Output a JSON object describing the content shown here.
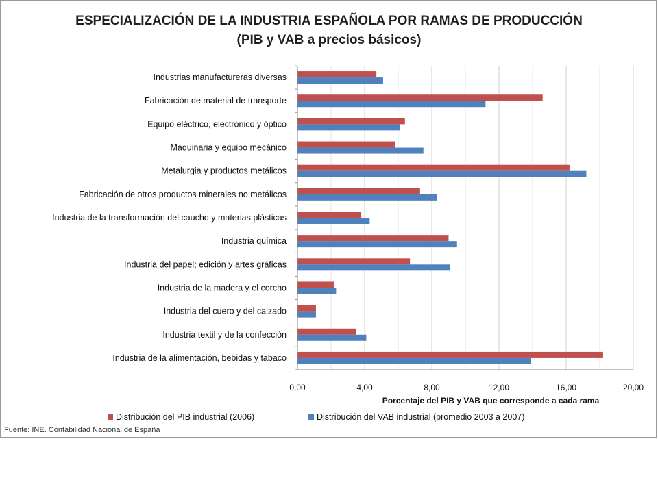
{
  "chart_data": {
    "type": "bar",
    "orientation": "horizontal",
    "title": "ESPECIALIZACIÓN DE LA INDUSTRIA ESPAÑOLA POR RAMAS DE PRODUCCIÓN",
    "subtitle": "(PIB y VAB a precios básicos)",
    "xlabel": "Porcentaje del PIB y VAB que corresponde a cada rama",
    "ylabel": "",
    "xlim": [
      0,
      20
    ],
    "x_ticks": [
      "0,00",
      "4,00",
      "8,00",
      "12,00",
      "16,00",
      "20,00"
    ],
    "grid": true,
    "legend_position": "bottom",
    "categories": [
      "Industrias manufactureras diversas",
      "Fabricación de material de transporte",
      "Equipo eléctrico, electrónico y óptico",
      "Maquinaria y equipo mecánico",
      "Metalurgia y  productos metálicos",
      "Fabricación de otros productos minerales no metálicos",
      "Industria de la transformación del caucho y materias plásticas",
      "Industria química",
      "Industria del papel; edición y artes gráficas",
      "Industria de la madera y el corcho",
      "Industria del cuero y del calzado",
      "Industria textil y de la confección",
      "Industria de la alimentación, bebidas y tabaco"
    ],
    "series": [
      {
        "name": "Distribución del PIB industrial (2006)",
        "color": "#C0504D",
        "values": [
          4.7,
          14.6,
          6.4,
          5.8,
          16.2,
          7.3,
          3.8,
          9.0,
          6.7,
          2.2,
          1.1,
          3.5,
          18.2
        ]
      },
      {
        "name": "Distribución del VAB industrial (promedio 2003 a 2007)",
        "color": "#4F81BD",
        "values": [
          5.1,
          11.2,
          6.1,
          7.5,
          17.2,
          8.3,
          4.3,
          9.5,
          9.1,
          2.3,
          1.1,
          4.1,
          13.9
        ]
      }
    ]
  },
  "footer": {
    "source": "Fuente: INE. Contabilidad Nacional de España"
  }
}
